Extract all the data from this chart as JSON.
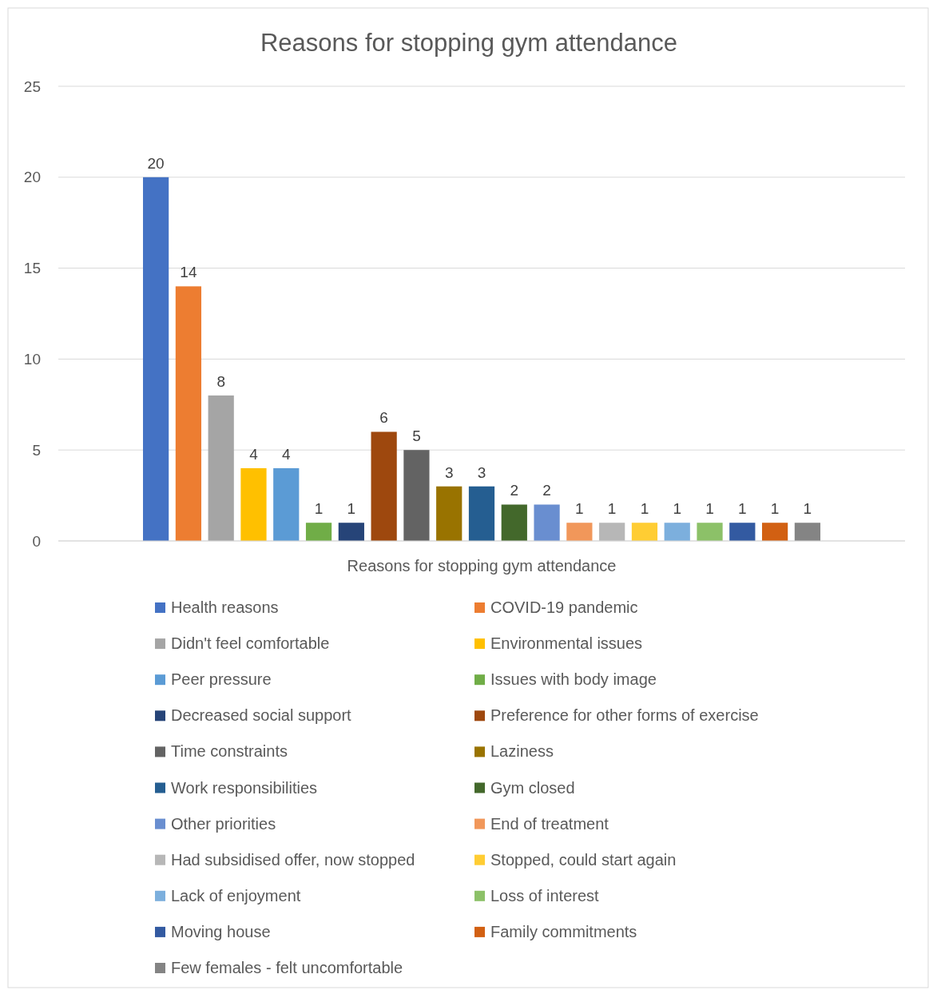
{
  "chart_data": {
    "type": "bar",
    "title": "Reasons for stopping gym attendance",
    "categories": [
      "Reasons for stopping gym attendance"
    ],
    "series": [
      {
        "name": "Health reasons",
        "color": "#4472c4",
        "values": [
          20
        ]
      },
      {
        "name": "COVID-19 pandemic",
        "color": "#ed7d31",
        "values": [
          14
        ]
      },
      {
        "name": "Didn't feel comfortable",
        "color": "#a5a5a5",
        "values": [
          8
        ]
      },
      {
        "name": "Environmental issues",
        "color": "#ffc000",
        "values": [
          4
        ]
      },
      {
        "name": "Peer pressure",
        "color": "#5b9bd5",
        "values": [
          4
        ]
      },
      {
        "name": "Issues with body image",
        "color": "#70ad47",
        "values": [
          1
        ]
      },
      {
        "name": "Decreased social support",
        "color": "#264478",
        "values": [
          1
        ]
      },
      {
        "name": "Preference for other forms of exercise",
        "color": "#9e480e",
        "values": [
          6
        ]
      },
      {
        "name": "Time constraints",
        "color": "#636363",
        "values": [
          5
        ]
      },
      {
        "name": "Laziness",
        "color": "#997300",
        "values": [
          3
        ]
      },
      {
        "name": "Work responsibilities",
        "color": "#255e91",
        "values": [
          3
        ]
      },
      {
        "name": "Gym closed",
        "color": "#43682b",
        "values": [
          2
        ]
      },
      {
        "name": "Other priorities",
        "color": "#698ed0",
        "values": [
          2
        ]
      },
      {
        "name": "End of treatment",
        "color": "#f1975a",
        "values": [
          1
        ]
      },
      {
        "name": "Had subsidised offer, now stopped",
        "color": "#b7b7b7",
        "values": [
          1
        ]
      },
      {
        "name": "Stopped, could start again",
        "color": "#ffcd33",
        "values": [
          1
        ]
      },
      {
        "name": "Lack of enjoyment",
        "color": "#7cafdd",
        "values": [
          1
        ]
      },
      {
        "name": "Loss of interest",
        "color": "#8cc168",
        "values": [
          1
        ]
      },
      {
        "name": "Moving house",
        "color": "#335aa1",
        "values": [
          1
        ]
      },
      {
        "name": "Family commitments",
        "color": "#d26012",
        "values": [
          1
        ]
      },
      {
        "name": "Few females - felt uncomfortable",
        "color": "#848484",
        "values": [
          1
        ]
      }
    ],
    "ylim": [
      0,
      25
    ],
    "yticks": [
      0,
      5,
      10,
      15,
      20,
      25
    ],
    "grid": "y",
    "data_labels": true,
    "legend": "bottom"
  }
}
